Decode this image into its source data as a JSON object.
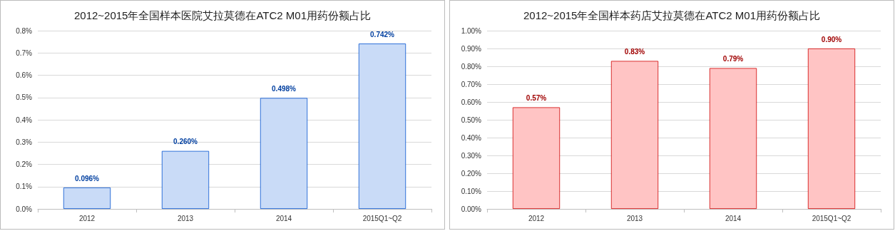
{
  "chart_data": [
    {
      "type": "bar",
      "title": "2012~2015年全国样本医院艾拉莫德在ATC2 M01用药份额占比",
      "categories": [
        "2012",
        "2013",
        "2014",
        "2015Q1~Q2"
      ],
      "values": [
        0.096,
        0.26,
        0.498,
        0.742
      ],
      "value_labels": [
        "0.096%",
        "0.260%",
        "0.498%",
        "0.742%"
      ],
      "color": "#c9dbf7",
      "ylim": [
        0,
        0.8
      ],
      "yticks": [
        {
          "value": 0,
          "label": "0.0%"
        },
        {
          "value": 0.1,
          "label": "0.1%"
        },
        {
          "value": 0.2,
          "label": "0.2%"
        },
        {
          "value": 0.3,
          "label": "0.3%"
        },
        {
          "value": 0.4,
          "label": "0.4%"
        },
        {
          "value": 0.5,
          "label": "0.5%"
        },
        {
          "value": 0.6,
          "label": "0.6%"
        },
        {
          "value": 0.7,
          "label": "0.7%"
        },
        {
          "value": 0.8,
          "label": "0.8%"
        }
      ],
      "grid": "y"
    },
    {
      "type": "bar",
      "title": "2012~2015年全国样本药店艾拉莫德在ATC2 M01用药份额占比",
      "categories": [
        "2012",
        "2013",
        "2014",
        "2015Q1~Q2"
      ],
      "values": [
        0.57,
        0.83,
        0.79,
        0.9
      ],
      "value_labels": [
        "0.57%",
        "0.83%",
        "0.79%",
        "0.90%"
      ],
      "color": "#ffc4c4",
      "ylim": [
        0,
        1.0
      ],
      "yticks": [
        {
          "value": 0,
          "label": "0.00%"
        },
        {
          "value": 0.1,
          "label": "0.10%"
        },
        {
          "value": 0.2,
          "label": "0.20%"
        },
        {
          "value": 0.3,
          "label": "0.30%"
        },
        {
          "value": 0.4,
          "label": "0.40%"
        },
        {
          "value": 0.5,
          "label": "0.50%"
        },
        {
          "value": 0.6,
          "label": "0.60%"
        },
        {
          "value": 0.7,
          "label": "0.70%"
        },
        {
          "value": 0.8,
          "label": "0.80%"
        },
        {
          "value": 0.9,
          "label": "0.90%"
        },
        {
          "value": 1.0,
          "label": "1.00%"
        }
      ],
      "grid": "y"
    }
  ]
}
